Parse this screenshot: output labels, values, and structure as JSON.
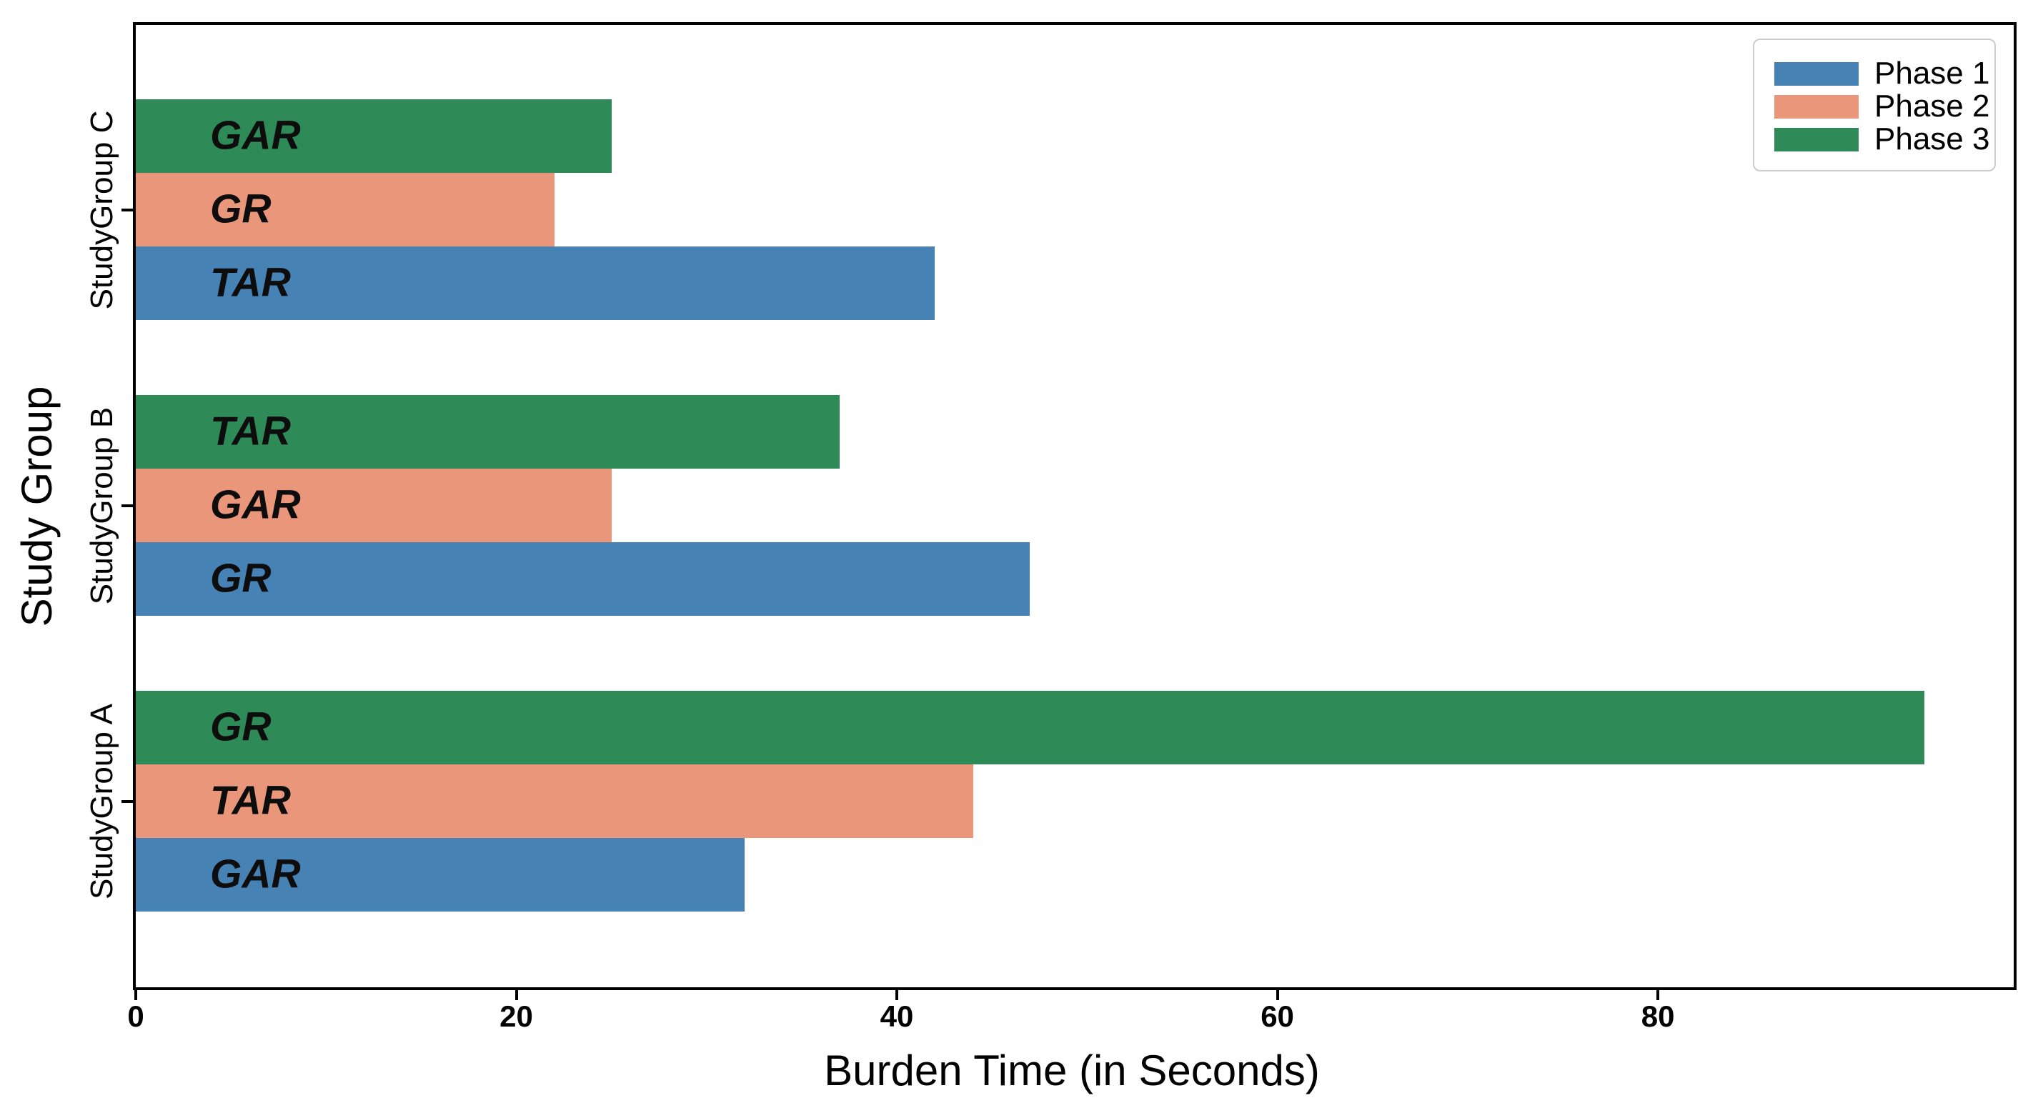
{
  "figure": {
    "background_color": "#ffffff",
    "spine_color": "#000000",
    "text_color": "#000000",
    "legend_border_color": "#cccccc"
  },
  "chart_data": {
    "type": "bar",
    "orientation": "horizontal",
    "title": "",
    "xlabel": "Burden Time (in Seconds)",
    "ylabel": "Study Group",
    "xlim": [
      0,
      98.7
    ],
    "xticks": [
      0,
      20,
      40,
      60,
      80
    ],
    "grid": false,
    "legend": {
      "position": "upper-right",
      "entries": [
        {
          "label": "Phase 1",
          "color": "#4682B4"
        },
        {
          "label": "Phase 2",
          "color": "#E9967A"
        },
        {
          "label": "Phase 3",
          "color": "#2E8B57"
        }
      ]
    },
    "series_summary": {
      "categories": [
        "StudyGroup A",
        "StudyGroup B",
        "StudyGroup C"
      ],
      "series": [
        {
          "name": "Phase 1",
          "color": "#4682B4",
          "values": [
            32,
            47,
            42
          ],
          "bar_labels": [
            "GAR",
            "GR",
            "TAR"
          ]
        },
        {
          "name": "Phase 2",
          "color": "#E9967A",
          "values": [
            44,
            25,
            22
          ],
          "bar_labels": [
            "TAR",
            "GAR",
            "GR"
          ]
        },
        {
          "name": "Phase 3",
          "color": "#2E8B57",
          "values": [
            94,
            37,
            25
          ],
          "bar_labels": [
            "GR",
            "TAR",
            "GAR"
          ]
        }
      ]
    },
    "groups": [
      {
        "category": "StudyGroup C",
        "bars": [
          {
            "series": "Phase 3",
            "label": "GAR",
            "value": 25,
            "color": "#2E8B57"
          },
          {
            "series": "Phase 2",
            "label": "GR",
            "value": 22,
            "color": "#E9967A"
          },
          {
            "series": "Phase 1",
            "label": "TAR",
            "value": 42,
            "color": "#4682B4"
          }
        ]
      },
      {
        "category": "StudyGroup B",
        "bars": [
          {
            "series": "Phase 3",
            "label": "TAR",
            "value": 37,
            "color": "#2E8B57"
          },
          {
            "series": "Phase 2",
            "label": "GAR",
            "value": 25,
            "color": "#E9967A"
          },
          {
            "series": "Phase 1",
            "label": "GR",
            "value": 47,
            "color": "#4682B4"
          }
        ]
      },
      {
        "category": "StudyGroup A",
        "bars": [
          {
            "series": "Phase 3",
            "label": "GR",
            "value": 94,
            "color": "#2E8B57"
          },
          {
            "series": "Phase 2",
            "label": "TAR",
            "value": 44,
            "color": "#E9967A"
          },
          {
            "series": "Phase 1",
            "label": "GAR",
            "value": 32,
            "color": "#4682B4"
          }
        ]
      }
    ]
  }
}
